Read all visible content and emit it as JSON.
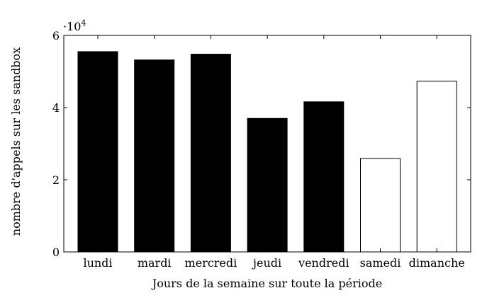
{
  "chart_data": {
    "type": "bar",
    "categories": [
      "lundi",
      "mardi",
      "mercredi",
      "jeudi",
      "vendredi",
      "samedi",
      "dimanche"
    ],
    "values": [
      55500,
      53200,
      54800,
      37000,
      41600,
      25900,
      47300
    ],
    "bar_fills": [
      "#000000",
      "#000000",
      "#000000",
      "#000000",
      "#000000",
      "#ffffff",
      "#ffffff"
    ],
    "xlabel": "Jours de la semaine sur toute la période",
    "ylabel": "nombre d'appels sur les sandbox",
    "ylim": [
      0,
      60000
    ],
    "yticks": [
      {
        "value": 0,
        "label": "0"
      },
      {
        "value": 20000,
        "label": "2"
      },
      {
        "value": 40000,
        "label": "4"
      },
      {
        "value": 60000,
        "label": "6"
      }
    ],
    "scale_base": "·10",
    "scale_exponent": "4",
    "grid": false
  }
}
